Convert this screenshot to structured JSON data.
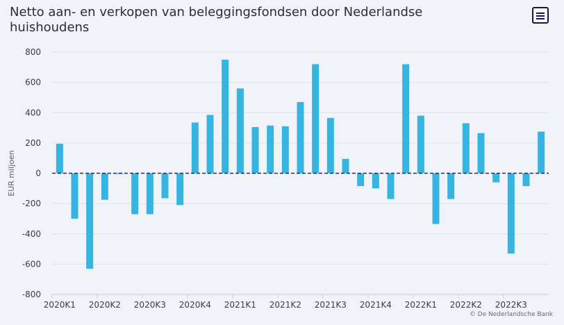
{
  "chart_data": {
    "type": "bar",
    "title": "Netto aan- en verkopen van beleggingsfondsen door Nederlandse huishoudens",
    "ylabel": "EUR miljoen",
    "xlabel": "",
    "ylim": [
      -800,
      800
    ],
    "yticks": [
      800,
      600,
      400,
      200,
      0,
      -200,
      -400,
      -600,
      -800
    ],
    "ytick_labels": [
      "800",
      "600",
      "400",
      "200",
      "0",
      "-200",
      "-400",
      "-600",
      "-800"
    ],
    "x_tick_labels": [
      "2020K1",
      "2020K2",
      "2020K3",
      "2020K4",
      "2021K1",
      "2021K2",
      "2021K3",
      "2021K4",
      "2022K1",
      "2022K2",
      "2022K3"
    ],
    "x_tick_every": 3,
    "grid": true,
    "legend": "none",
    "bar_color": "#36b4e2",
    "zero_line_color": "#1d2a6e",
    "values": [
      195,
      -300,
      -630,
      -175,
      -5,
      -270,
      -270,
      -165,
      -210,
      335,
      385,
      750,
      560,
      305,
      315,
      310,
      470,
      720,
      365,
      95,
      -85,
      -100,
      -170,
      720,
      380,
      -335,
      -170,
      330,
      265,
      -60,
      -530,
      -85,
      275
    ]
  },
  "ui": {
    "menu_icon": "hamburger-menu-icon",
    "credit": "© De Nederlandsche Bank"
  }
}
